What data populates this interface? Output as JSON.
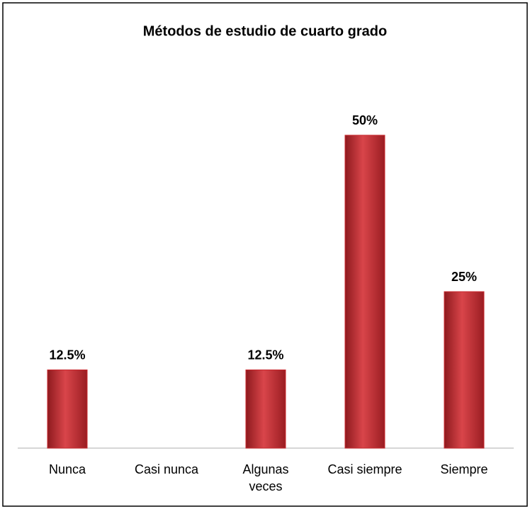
{
  "chart_data": {
    "type": "bar",
    "title": "Métodos de estudio de cuarto grado",
    "categories": [
      "Nunca",
      "Casi nunca",
      "Algunas veces",
      "Casi siempre",
      "Siempre"
    ],
    "values": [
      12.5,
      0,
      12.5,
      50,
      25
    ],
    "value_labels": [
      "12.5%",
      null,
      "12.5%",
      "50%",
      "25%"
    ],
    "color": "#c8282e"
  }
}
